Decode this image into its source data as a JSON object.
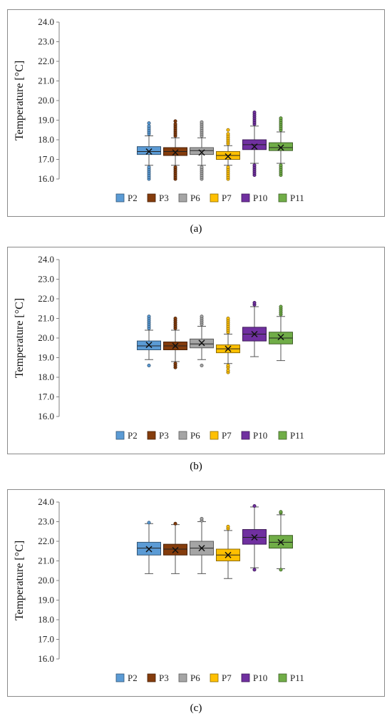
{
  "chart_data": [
    {
      "type": "box",
      "caption": "(a)",
      "ylabel": "Temperature [°C]",
      "ylim": [
        16.0,
        24.0
      ],
      "yticks": [
        "16.0",
        "17.0",
        "18.0",
        "19.0",
        "20.0",
        "21.0",
        "22.0",
        "23.0",
        "24.0"
      ],
      "series": [
        {
          "name": "P2",
          "color": "#5b9bd5",
          "whisker_low": 16.7,
          "q1": 17.25,
          "median": 17.4,
          "q3": 17.65,
          "whisker_high": 18.2,
          "mean": 17.4,
          "outliers": [
            16.0,
            16.1,
            16.2,
            16.3,
            16.4,
            16.5,
            16.6,
            18.3,
            18.4,
            18.5,
            18.6,
            18.7,
            18.85
          ]
        },
        {
          "name": "P3",
          "color": "#843c0c",
          "whisker_low": 16.7,
          "q1": 17.2,
          "median": 17.4,
          "q3": 17.6,
          "whisker_high": 18.1,
          "mean": 17.35,
          "outliers": [
            16.0,
            16.1,
            16.2,
            16.3,
            16.4,
            16.5,
            16.6,
            18.2,
            18.3,
            18.4,
            18.5,
            18.6,
            18.7,
            18.8,
            18.95
          ]
        },
        {
          "name": "P6",
          "color": "#a5a5a5",
          "whisker_low": 16.7,
          "q1": 17.25,
          "median": 17.45,
          "q3": 17.6,
          "whisker_high": 18.1,
          "mean": 17.35,
          "outliers": [
            16.0,
            16.1,
            16.2,
            16.3,
            16.4,
            16.5,
            16.6,
            18.2,
            18.3,
            18.4,
            18.5,
            18.6,
            18.7,
            18.8,
            18.9
          ]
        },
        {
          "name": "P7",
          "color": "#ffc000",
          "whisker_low": 16.7,
          "q1": 17.0,
          "median": 17.2,
          "q3": 17.4,
          "whisker_high": 17.7,
          "mean": 17.15,
          "outliers": [
            16.0,
            16.1,
            16.2,
            16.3,
            16.4,
            16.5,
            16.6,
            17.8,
            17.9,
            18.0,
            18.1,
            18.2,
            18.3,
            18.5
          ]
        },
        {
          "name": "P10",
          "color": "#7030a0",
          "whisker_low": 16.8,
          "q1": 17.5,
          "median": 17.75,
          "q3": 18.0,
          "whisker_high": 18.7,
          "mean": 17.65,
          "outliers": [
            16.2,
            16.3,
            16.4,
            16.5,
            16.6,
            16.7,
            18.8,
            18.9,
            19.0,
            19.1,
            19.2,
            19.3,
            19.4
          ]
        },
        {
          "name": "P11",
          "color": "#70ad47",
          "whisker_low": 16.8,
          "q1": 17.45,
          "median": 17.6,
          "q3": 17.85,
          "whisker_high": 18.4,
          "mean": 17.6,
          "outliers": [
            16.2,
            16.3,
            16.4,
            16.5,
            16.6,
            16.7,
            18.5,
            18.6,
            18.7,
            18.8,
            18.9,
            19.0,
            19.1
          ]
        }
      ]
    },
    {
      "type": "box",
      "caption": "(b)",
      "ylabel": "Temperature [°C]",
      "ylim": [
        16.0,
        24.0
      ],
      "yticks": [
        "16.0",
        "17.0",
        "18.0",
        "19.0",
        "20.0",
        "21.0",
        "22.0",
        "23.0",
        "24.0"
      ],
      "series": [
        {
          "name": "P2",
          "color": "#5b9bd5",
          "whisker_low": 18.9,
          "q1": 19.4,
          "median": 19.6,
          "q3": 19.85,
          "whisker_high": 20.4,
          "mean": 19.65,
          "outliers": [
            18.6,
            20.5,
            20.6,
            20.7,
            20.8,
            20.9,
            21.0,
            21.1
          ]
        },
        {
          "name": "P3",
          "color": "#843c0c",
          "whisker_low": 18.8,
          "q1": 19.4,
          "median": 19.6,
          "q3": 19.8,
          "whisker_high": 20.4,
          "mean": 19.6,
          "outliers": [
            18.5,
            18.6,
            18.7,
            20.5,
            20.6,
            20.7,
            20.8,
            20.9,
            21.0
          ]
        },
        {
          "name": "P6",
          "color": "#a5a5a5",
          "whisker_low": 18.9,
          "q1": 19.5,
          "median": 19.7,
          "q3": 19.95,
          "whisker_high": 20.6,
          "mean": 19.75,
          "outliers": [
            18.6,
            20.7,
            20.8,
            20.9,
            21.0,
            21.1
          ]
        },
        {
          "name": "P7",
          "color": "#ffc000",
          "whisker_low": 18.7,
          "q1": 19.25,
          "median": 19.45,
          "q3": 19.65,
          "whisker_high": 20.2,
          "mean": 19.45,
          "outliers": [
            18.25,
            18.35,
            18.5,
            18.6,
            20.3,
            20.4,
            20.5,
            20.6,
            20.7,
            20.8,
            20.9,
            21.0
          ]
        },
        {
          "name": "P10",
          "color": "#7030a0",
          "whisker_low": 19.05,
          "q1": 19.85,
          "median": 20.2,
          "q3": 20.55,
          "whisker_high": 21.6,
          "mean": 20.2,
          "outliers": [
            21.7,
            21.8
          ]
        },
        {
          "name": "P11",
          "color": "#70ad47",
          "whisker_low": 18.85,
          "q1": 19.7,
          "median": 20.0,
          "q3": 20.3,
          "whisker_high": 21.1,
          "mean": 20.05,
          "outliers": [
            21.2,
            21.3,
            21.4,
            21.5,
            21.6
          ]
        }
      ]
    },
    {
      "type": "box",
      "caption": "(c)",
      "ylabel": "Temperature [°C]",
      "ylim": [
        16.0,
        24.0
      ],
      "yticks": [
        "16.0",
        "17.0",
        "18.0",
        "19.0",
        "20.0",
        "21.0",
        "22.0",
        "23.0",
        "24.0"
      ],
      "series": [
        {
          "name": "P2",
          "color": "#5b9bd5",
          "whisker_low": 20.35,
          "q1": 21.3,
          "median": 21.65,
          "q3": 21.95,
          "whisker_high": 22.9,
          "mean": 21.6,
          "outliers": [
            22.95
          ]
        },
        {
          "name": "P3",
          "color": "#843c0c",
          "whisker_low": 20.35,
          "q1": 21.3,
          "median": 21.6,
          "q3": 21.85,
          "whisker_high": 22.85,
          "mean": 21.55,
          "outliers": [
            22.9
          ]
        },
        {
          "name": "P6",
          "color": "#a5a5a5",
          "whisker_low": 20.35,
          "q1": 21.3,
          "median": 21.65,
          "q3": 22.0,
          "whisker_high": 23.0,
          "mean": 21.65,
          "outliers": [
            23.05,
            23.15
          ]
        },
        {
          "name": "P7",
          "color": "#ffc000",
          "whisker_low": 20.1,
          "q1": 21.0,
          "median": 21.3,
          "q3": 21.6,
          "whisker_high": 22.55,
          "mean": 21.3,
          "outliers": [
            22.65,
            22.75
          ]
        },
        {
          "name": "P10",
          "color": "#7030a0",
          "whisker_low": 20.65,
          "q1": 21.85,
          "median": 22.2,
          "q3": 22.6,
          "whisker_high": 23.75,
          "mean": 22.2,
          "outliers": [
            20.55,
            23.8
          ]
        },
        {
          "name": "P11",
          "color": "#70ad47",
          "whisker_low": 20.6,
          "q1": 21.65,
          "median": 21.95,
          "q3": 22.3,
          "whisker_high": 23.35,
          "mean": 21.95,
          "outliers": [
            20.55,
            23.45,
            23.5
          ]
        }
      ]
    }
  ]
}
